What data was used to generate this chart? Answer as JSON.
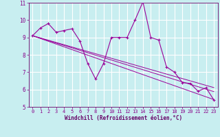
{
  "xlabel": "Windchill (Refroidissement éolien,°C)",
  "bg_color": "#c8eef0",
  "grid_color": "#b0dde0",
  "line_color": "#990099",
  "x_data": [
    0,
    1,
    2,
    3,
    4,
    5,
    6,
    7,
    8,
    9,
    10,
    11,
    12,
    13,
    14,
    15,
    16,
    17,
    18,
    19,
    20,
    21,
    22,
    23
  ],
  "y_main": [
    9.1,
    9.55,
    9.8,
    9.3,
    9.4,
    9.5,
    8.8,
    7.5,
    6.6,
    7.5,
    9.0,
    9.0,
    9.0,
    10.0,
    11.05,
    9.0,
    8.85,
    7.3,
    7.0,
    6.4,
    6.35,
    5.9,
    6.1,
    5.4
  ],
  "y_line1": [
    9.1,
    8.97,
    8.84,
    8.71,
    8.58,
    8.45,
    8.32,
    8.19,
    8.06,
    7.93,
    7.8,
    7.67,
    7.54,
    7.41,
    7.28,
    7.15,
    7.02,
    6.89,
    6.76,
    6.63,
    6.5,
    6.37,
    6.24,
    6.11
  ],
  "y_line2": [
    9.1,
    8.96,
    8.82,
    8.68,
    8.54,
    8.4,
    8.26,
    8.12,
    7.98,
    7.84,
    7.7,
    7.56,
    7.42,
    7.28,
    7.14,
    7.0,
    6.86,
    6.72,
    6.58,
    6.44,
    6.3,
    6.16,
    6.02,
    5.88
  ],
  "y_line3": [
    9.1,
    8.94,
    8.78,
    8.62,
    8.46,
    8.3,
    8.14,
    7.98,
    7.82,
    7.66,
    7.5,
    7.34,
    7.18,
    7.02,
    6.86,
    6.7,
    6.54,
    6.38,
    6.22,
    6.06,
    5.9,
    5.74,
    5.58,
    5.42
  ],
  "ylim": [
    5,
    11
  ],
  "xlim": [
    -0.5,
    23.5
  ],
  "yticks": [
    5,
    6,
    7,
    8,
    9,
    10,
    11
  ],
  "xticks": [
    0,
    1,
    2,
    3,
    4,
    5,
    6,
    7,
    8,
    9,
    10,
    11,
    12,
    13,
    14,
    15,
    16,
    17,
    18,
    19,
    20,
    21,
    22,
    23
  ]
}
